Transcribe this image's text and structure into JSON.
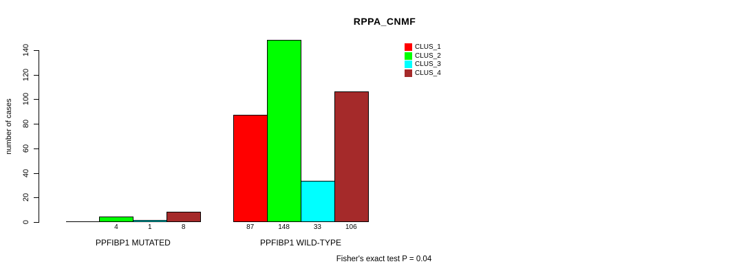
{
  "chart_data": {
    "type": "bar",
    "title": "RPPA_CNMF",
    "ylabel": "number of cases",
    "xlabel": "",
    "ylim": [
      0,
      140
    ],
    "yticks": [
      0,
      20,
      40,
      60,
      80,
      100,
      120,
      140
    ],
    "grid": false,
    "legend_position": "top-right",
    "categories": [
      "PPFIBP1 MUTATED",
      "PPFIBP1 WILD-TYPE"
    ],
    "series": [
      {
        "name": "CLUS_1",
        "color": "#ff0000",
        "values": [
          0,
          87
        ]
      },
      {
        "name": "CLUS_2",
        "color": "#00ff00",
        "values": [
          4,
          148
        ]
      },
      {
        "name": "CLUS_3",
        "color": "#00ffff",
        "values": [
          1,
          33
        ]
      },
      {
        "name": "CLUS_4",
        "color": "#a52a2a",
        "values": [
          8,
          106
        ]
      }
    ],
    "bar_count_labels": [
      [
        "",
        "4",
        "1",
        "8"
      ],
      [
        "87",
        "148",
        "33",
        "106"
      ]
    ],
    "annotation": "Fisher's exact test P = 0.04",
    "axis_color": "#000000",
    "background": "#ffffff"
  }
}
